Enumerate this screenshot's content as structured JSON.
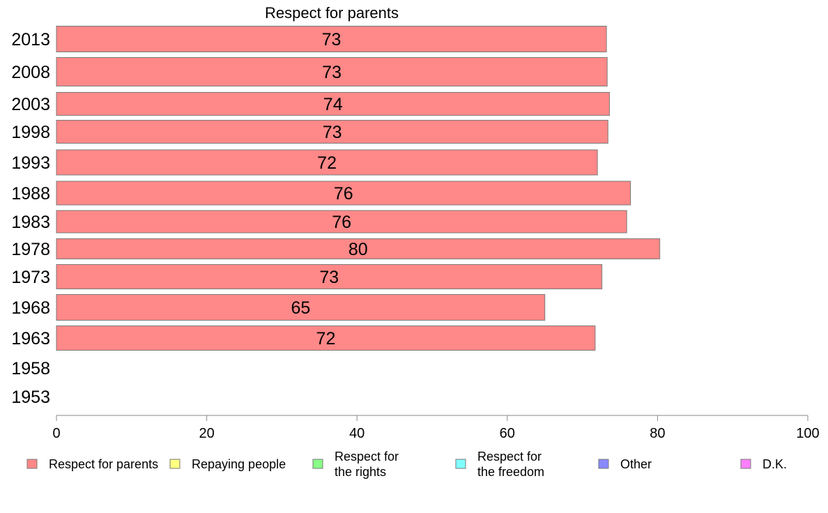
{
  "chart_data": {
    "type": "bar",
    "orientation": "horizontal",
    "title": "Respect for parents",
    "categories": [
      "2013",
      "2008",
      "2003",
      "1998",
      "1993",
      "1988",
      "1983",
      "1978",
      "1973",
      "1968",
      "1963",
      "1958",
      "1953"
    ],
    "series": [
      {
        "name": "Respect for parents",
        "color": "#ff8888",
        "values": [
          73.2,
          73.3,
          73.6,
          73.4,
          72.0,
          76.4,
          75.9,
          80.3,
          72.6,
          65.0,
          71.7,
          null,
          null
        ],
        "labels": [
          "73",
          "73",
          "74",
          "73",
          "72",
          "76",
          "76",
          "80",
          "73",
          "65",
          "72",
          "",
          ""
        ]
      }
    ],
    "xlim": [
      0,
      100
    ],
    "xticks": [
      "0",
      "20",
      "40",
      "60",
      "80",
      "100"
    ],
    "grid": false,
    "legend": {
      "placement": "bottom",
      "items": [
        {
          "lines": [
            "Respect for parents"
          ],
          "color": "#ff8888"
        },
        {
          "lines": [
            "Repaying people"
          ],
          "color": "#ffff80"
        },
        {
          "lines": [
            "Respect for",
            "the rights"
          ],
          "color": "#88ff88"
        },
        {
          "lines": [
            "Respect for",
            "the freedom"
          ],
          "color": "#80ffff"
        },
        {
          "lines": [
            "Other"
          ],
          "color": "#8888ff"
        },
        {
          "lines": [
            "D.K."
          ],
          "color": "#ff80ff"
        }
      ]
    }
  }
}
